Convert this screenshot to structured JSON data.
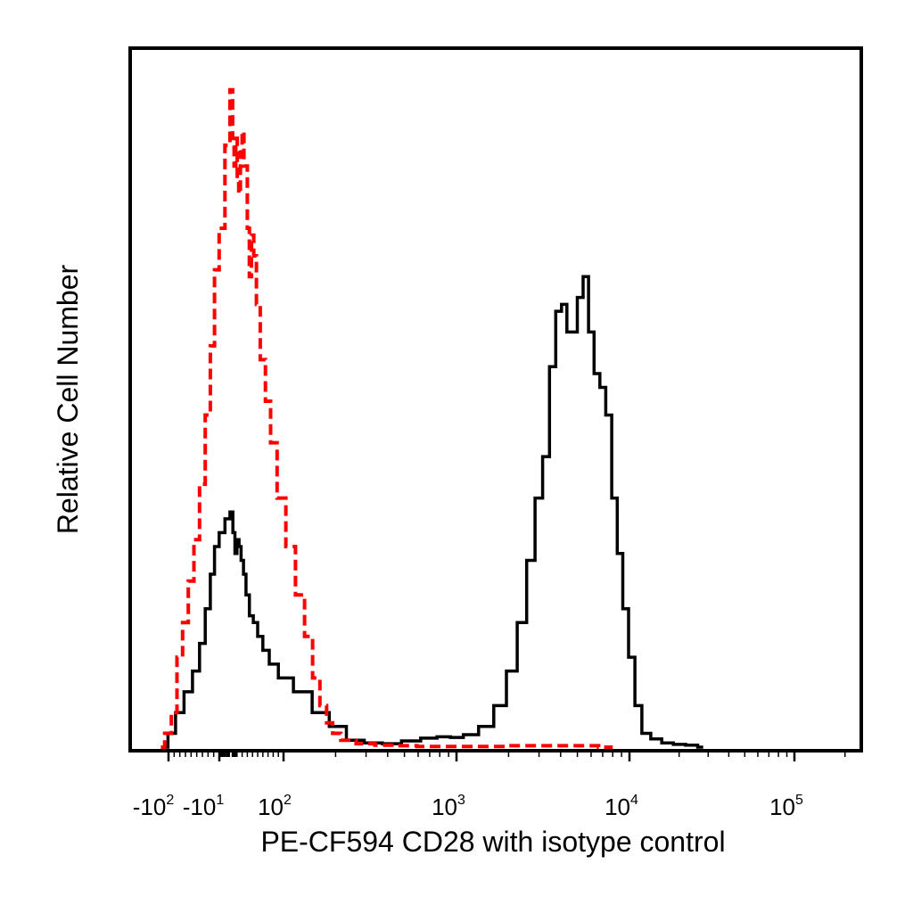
{
  "chart_data": {
    "type": "line",
    "title": "",
    "xlabel": "PE-CF594 CD28 with isotype control",
    "ylabel": "Relative Cell Number",
    "x_scale": "biexponential (logicle)",
    "xlim": [
      -150,
      250000
    ],
    "ylim": [
      0,
      100
    ],
    "grid": false,
    "legend": "none",
    "x_tick_labels": [
      {
        "value": -100,
        "base": "-10",
        "exp": "2"
      },
      {
        "value": -10,
        "base": "-10",
        "exp": "1"
      },
      {
        "value": 100,
        "base": "10",
        "exp": "2"
      },
      {
        "value": 1000,
        "base": "10",
        "exp": "3"
      },
      {
        "value": 10000,
        "base": "10",
        "exp": "4"
      },
      {
        "value": 100000,
        "base": "10",
        "exp": "5"
      }
    ],
    "series": [
      {
        "color": "#000000",
        "dash": "solid",
        "points": [
          [
            -105,
            0
          ],
          [
            -95,
            2
          ],
          [
            -80,
            5
          ],
          [
            -65,
            8
          ],
          [
            -50,
            11
          ],
          [
            -40,
            15
          ],
          [
            -30,
            20
          ],
          [
            -22,
            25
          ],
          [
            -15,
            29
          ],
          [
            -8,
            31
          ],
          [
            -3,
            33
          ],
          [
            0,
            34
          ],
          [
            4,
            31
          ],
          [
            8,
            28
          ],
          [
            12,
            30
          ],
          [
            16,
            29
          ],
          [
            20,
            27
          ],
          [
            25,
            25
          ],
          [
            30,
            22
          ],
          [
            38,
            19
          ],
          [
            45,
            18
          ],
          [
            55,
            16
          ],
          [
            65,
            14
          ],
          [
            80,
            12
          ],
          [
            100,
            10
          ],
          [
            130,
            8
          ],
          [
            165,
            5
          ],
          [
            205,
            3
          ],
          [
            260,
            1
          ],
          [
            330,
            0.6
          ],
          [
            420,
            0.5
          ],
          [
            550,
            0.9
          ],
          [
            700,
            1.3
          ],
          [
            850,
            1.5
          ],
          [
            1000,
            1.4
          ],
          [
            1200,
            1.8
          ],
          [
            1500,
            3
          ],
          [
            1800,
            6
          ],
          [
            2100,
            11
          ],
          [
            2400,
            18
          ],
          [
            2700,
            27
          ],
          [
            3000,
            36
          ],
          [
            3300,
            42
          ],
          [
            3600,
            55
          ],
          [
            3900,
            63
          ],
          [
            4200,
            64
          ],
          [
            4500,
            60
          ],
          [
            4800,
            60
          ],
          [
            5200,
            65
          ],
          [
            5600,
            68
          ],
          [
            6000,
            60
          ],
          [
            6500,
            54
          ],
          [
            7000,
            52
          ],
          [
            7600,
            48
          ],
          [
            8200,
            36
          ],
          [
            8800,
            28
          ],
          [
            9500,
            20
          ],
          [
            10300,
            13
          ],
          [
            11300,
            6
          ],
          [
            12500,
            2
          ],
          [
            14500,
            1.2
          ],
          [
            17000,
            0.6
          ],
          [
            20000,
            0.4
          ],
          [
            24000,
            0.3
          ],
          [
            28000,
            0
          ]
        ]
      },
      {
        "color": "#ff0000",
        "dash": "dashed",
        "points": [
          [
            -110,
            0
          ],
          [
            -100,
            2
          ],
          [
            -90,
            5
          ],
          [
            -80,
            13
          ],
          [
            -70,
            18
          ],
          [
            -60,
            24
          ],
          [
            -50,
            30
          ],
          [
            -40,
            38
          ],
          [
            -30,
            48
          ],
          [
            -22,
            58
          ],
          [
            -15,
            69
          ],
          [
            -8,
            75
          ],
          [
            -3,
            87
          ],
          [
            0,
            95
          ],
          [
            3,
            88
          ],
          [
            6,
            84
          ],
          [
            9,
            88
          ],
          [
            12,
            82
          ],
          [
            15,
            80
          ],
          [
            18,
            86
          ],
          [
            22,
            89
          ],
          [
            25,
            84
          ],
          [
            28,
            84
          ],
          [
            32,
            75
          ],
          [
            36,
            68
          ],
          [
            40,
            74
          ],
          [
            45,
            71
          ],
          [
            50,
            64
          ],
          [
            60,
            56
          ],
          [
            70,
            50
          ],
          [
            80,
            44
          ],
          [
            95,
            36
          ],
          [
            110,
            29
          ],
          [
            125,
            22
          ],
          [
            140,
            16
          ],
          [
            155,
            10
          ],
          [
            170,
            6
          ],
          [
            185,
            3.5
          ],
          [
            200,
            2
          ],
          [
            230,
            1
          ],
          [
            300,
            0.5
          ],
          [
            380,
            0.3
          ],
          [
            500,
            0.2
          ],
          [
            700,
            0.1
          ],
          [
            1500,
            0.1
          ],
          [
            2500,
            0.2
          ],
          [
            4000,
            0.2
          ],
          [
            5500,
            0.2
          ],
          [
            8000,
            0
          ]
        ]
      }
    ]
  }
}
